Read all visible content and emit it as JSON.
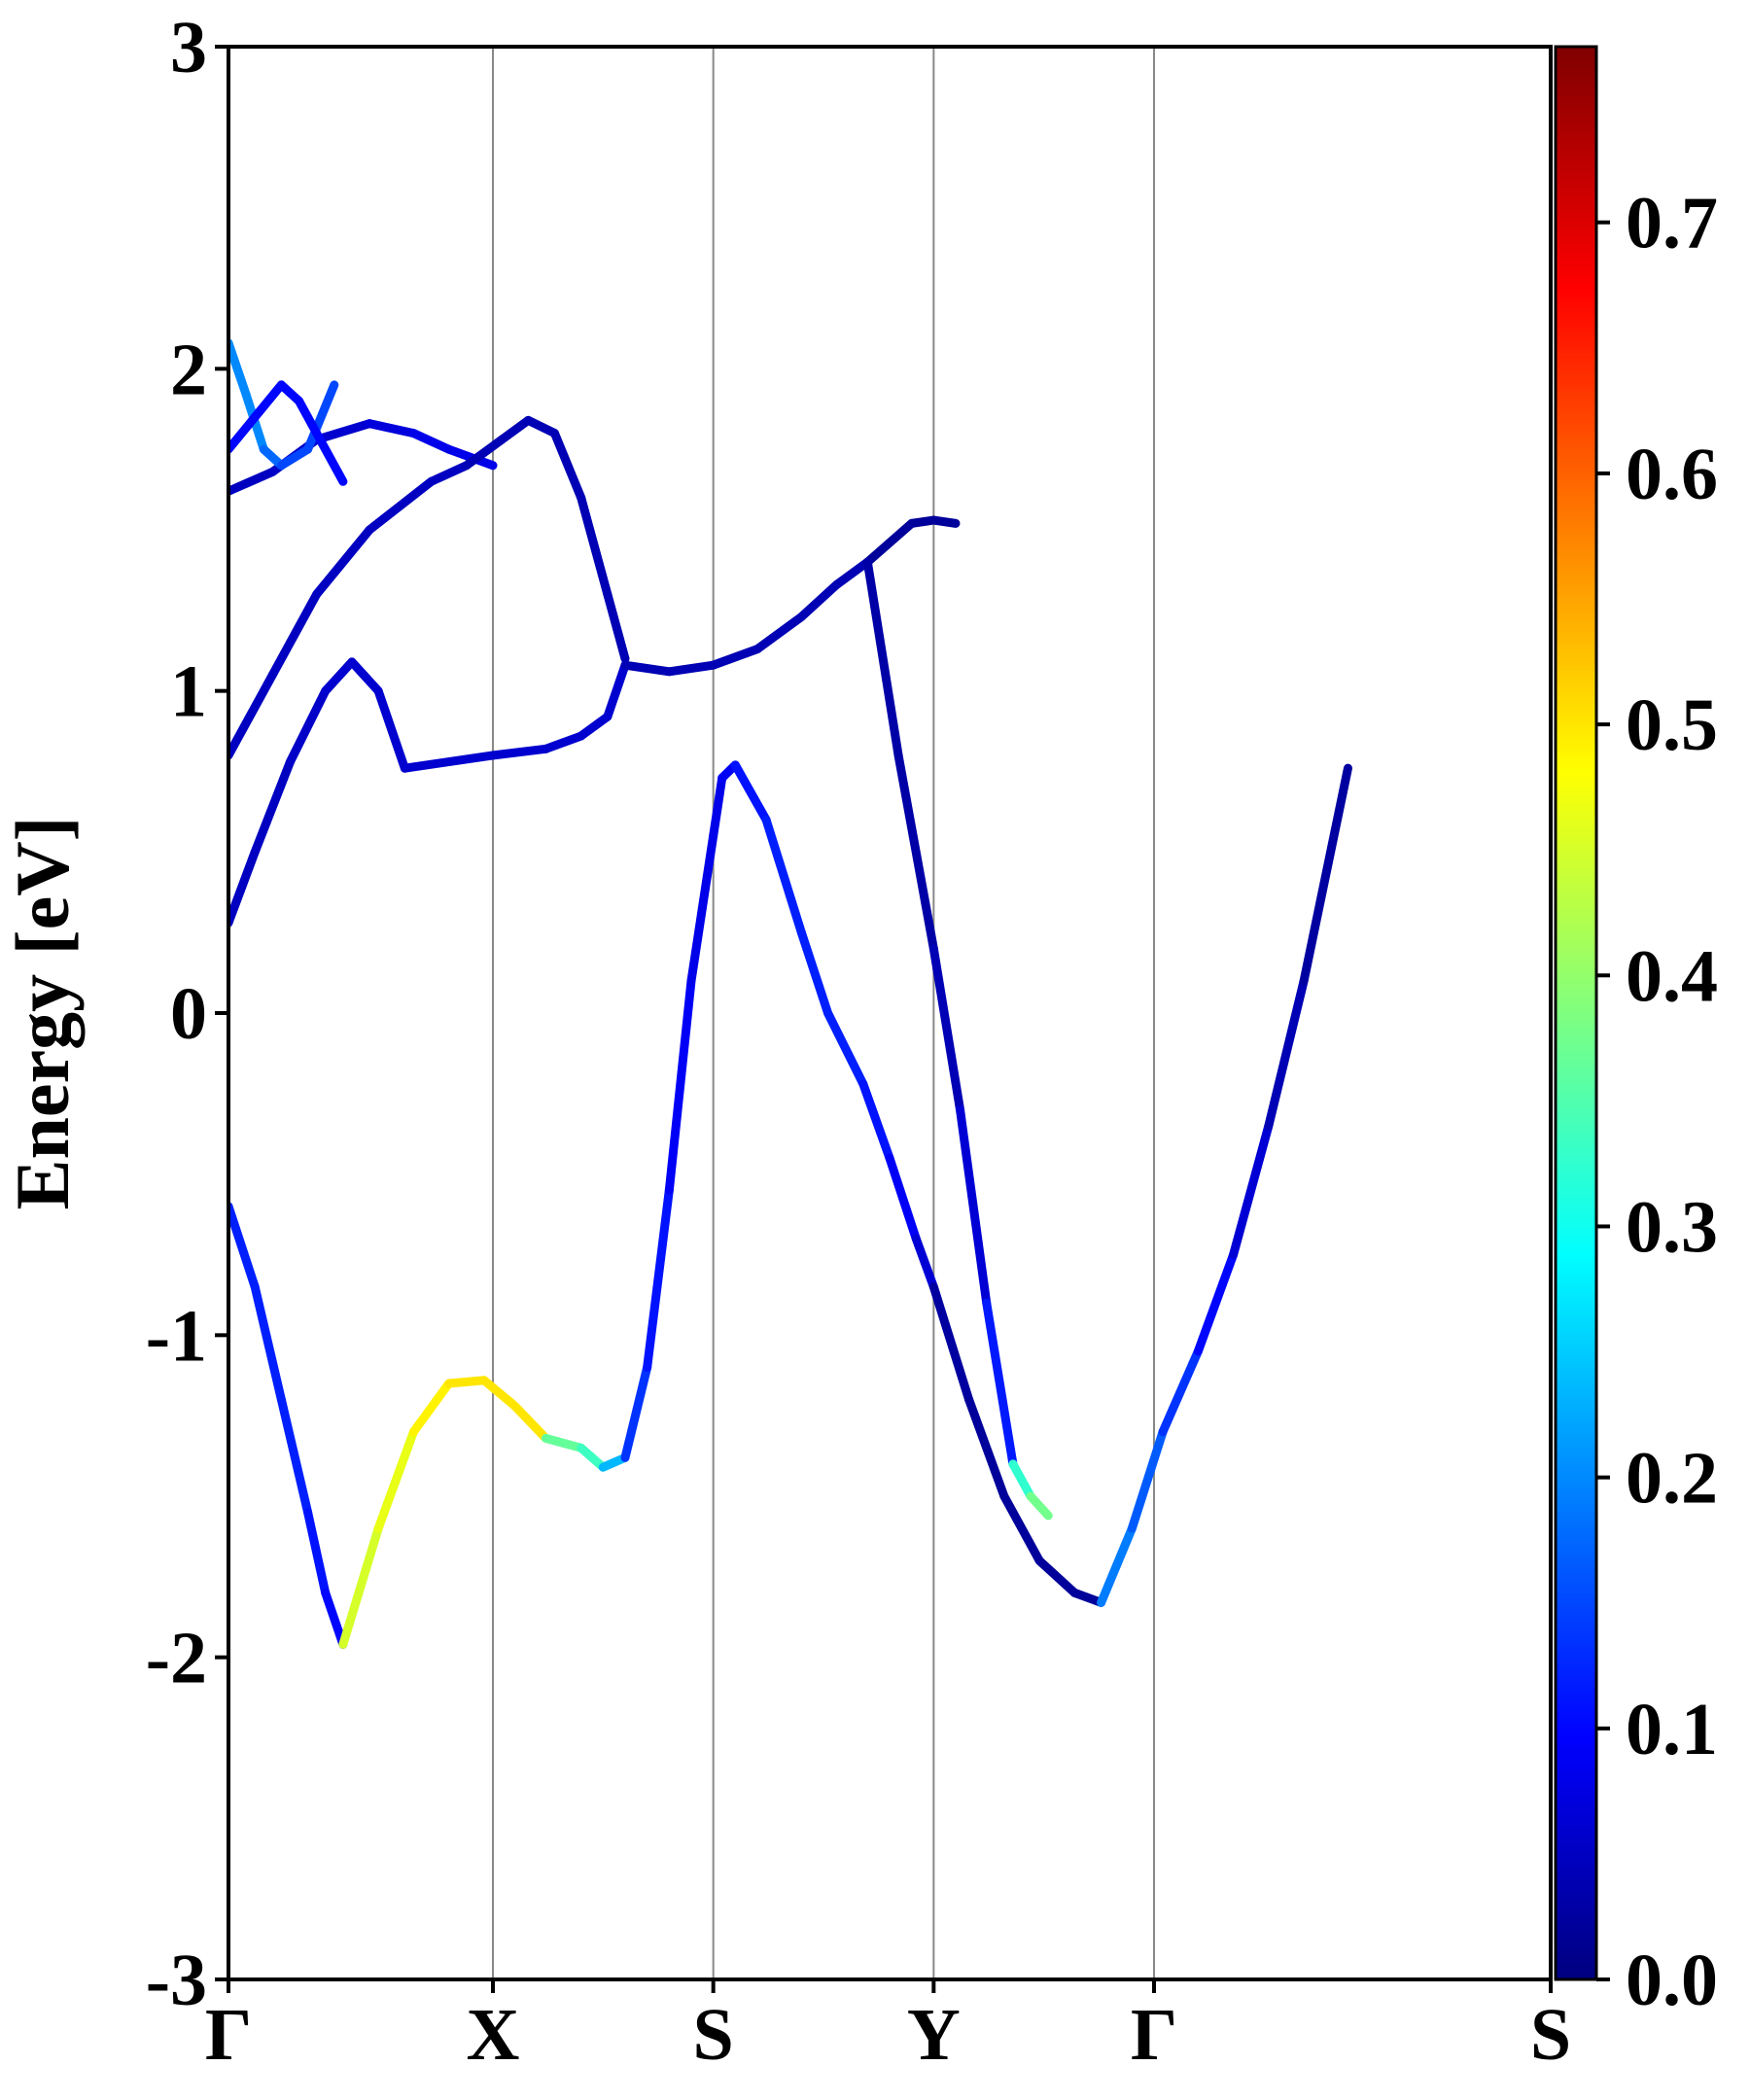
{
  "chart_data": {
    "type": "line",
    "title": "",
    "ylabel": "Energy [eV]",
    "xlabel": "",
    "ylim": [
      -3,
      3
    ],
    "x_ticks": [
      "Γ",
      "X",
      "S",
      "Y",
      "Γ",
      "S"
    ],
    "y_ticks": [
      "3",
      "2",
      "1",
      "0",
      "-1",
      "-2",
      "-3"
    ],
    "colorbar": {
      "range": [
        0.0,
        0.77
      ],
      "ticks": [
        "0.0",
        "0.1",
        "0.2",
        "0.3",
        "0.4",
        "0.5",
        "0.6",
        "0.7"
      ],
      "colormap": "jet"
    },
    "grid": "vertical lines at high-symmetry points",
    "series": [
      {
        "points": [
          [
            0,
            -0.6
          ],
          [
            0.06,
            -0.85
          ],
          [
            0.12,
            -1.2
          ],
          [
            0.18,
            -1.55
          ],
          [
            0.22,
            -1.8
          ],
          [
            0.26,
            -1.96
          ]
        ],
        "c": [
          0.12,
          0.12,
          0.12,
          0.12,
          0.1,
          0.1
        ]
      },
      {
        "points": [
          [
            0.26,
            -1.96
          ],
          [
            0.34,
            -1.6
          ],
          [
            0.42,
            -1.3
          ],
          [
            0.5,
            -1.15
          ],
          [
            0.58,
            -1.14
          ],
          [
            0.65,
            -1.22
          ],
          [
            0.72,
            -1.32
          ]
        ],
        "c": [
          0.45,
          0.45,
          0.48,
          0.5,
          0.5,
          0.5,
          0.5
        ]
      },
      {
        "points": [
          [
            0.72,
            -1.32
          ],
          [
            0.8,
            -1.35
          ],
          [
            0.85,
            -1.41
          ],
          [
            0.9,
            -1.38
          ],
          [
            0.95,
            -1.1
          ],
          [
            1.0,
            -0.55
          ],
          [
            1.05,
            0.1
          ],
          [
            1.1,
            0.55
          ],
          [
            1.12,
            0.73
          ],
          [
            1.15,
            0.77
          ]
        ],
        "c": [
          0.38,
          0.35,
          0.32,
          0.15,
          0.12,
          0.1,
          0.08,
          0.08,
          0.08,
          0.1
        ]
      },
      {
        "points": [
          [
            1.15,
            0.77
          ],
          [
            1.22,
            0.6
          ],
          [
            1.3,
            0.25
          ],
          [
            1.36,
            0.0
          ],
          [
            1.44,
            -0.22
          ],
          [
            1.5,
            -0.45
          ],
          [
            1.56,
            -0.7
          ],
          [
            1.6,
            -0.85
          ]
        ],
        "c": [
          0.1,
          0.12,
          0.12,
          0.12,
          0.12,
          0.1,
          0.08,
          0.05
        ]
      },
      {
        "points": [
          [
            1.6,
            -0.85
          ],
          [
            1.68,
            -1.2
          ],
          [
            1.76,
            -1.5
          ],
          [
            1.84,
            -1.7
          ],
          [
            1.92,
            -1.8
          ],
          [
            1.98,
            -1.83
          ]
        ],
        "c": [
          0.03,
          0.02,
          0.02,
          0.02,
          0.02,
          0.02
        ]
      },
      {
        "points": [
          [
            1.98,
            -1.83
          ],
          [
            2.05,
            -1.6
          ],
          [
            2.12,
            -1.3
          ],
          [
            2.2,
            -1.05
          ],
          [
            2.28,
            -0.75
          ],
          [
            2.36,
            -0.35
          ],
          [
            2.44,
            0.1
          ],
          [
            2.54,
            0.76
          ]
        ],
        "c": [
          0.2,
          0.18,
          0.15,
          0.12,
          0.08,
          0.05,
          0.03,
          0.02
        ]
      },
      {
        "points": [
          [
            0,
            0.28
          ],
          [
            0.06,
            0.5
          ],
          [
            0.14,
            0.78
          ],
          [
            0.22,
            1.0
          ],
          [
            0.28,
            1.09
          ],
          [
            0.34,
            1.0
          ],
          [
            0.4,
            0.76
          ]
        ],
        "c": [
          0.05,
          0.05,
          0.05,
          0.06,
          0.06,
          0.06,
          0.06
        ]
      },
      {
        "points": [
          [
            0.4,
            0.76
          ],
          [
            0.6,
            0.8
          ],
          [
            0.72,
            0.82
          ],
          [
            0.8,
            0.86
          ],
          [
            0.86,
            0.92
          ],
          [
            0.9,
            1.08
          ]
        ],
        "c": [
          0.06,
          0.06,
          0.06,
          0.06,
          0.06,
          0.06
        ]
      },
      {
        "points": [
          [
            0.9,
            1.08
          ],
          [
            1.0,
            1.06
          ],
          [
            1.1,
            1.08
          ],
          [
            1.2,
            1.13
          ],
          [
            1.3,
            1.23
          ],
          [
            1.38,
            1.33
          ],
          [
            1.45,
            1.4
          ]
        ],
        "c": [
          0.04,
          0.04,
          0.04,
          0.04,
          0.04,
          0.04,
          0.04
        ]
      },
      {
        "points": [
          [
            1.45,
            1.4
          ],
          [
            1.55,
            1.52
          ],
          [
            1.6,
            1.53
          ],
          [
            1.65,
            1.52
          ]
        ],
        "c": [
          0.02,
          0.02,
          0.02,
          0.02
        ]
      },
      {
        "points": [
          [
            1.45,
            1.4
          ],
          [
            1.52,
            0.8
          ],
          [
            1.6,
            0.2
          ],
          [
            1.66,
            -0.3
          ],
          [
            1.72,
            -0.9
          ],
          [
            1.78,
            -1.4
          ]
        ],
        "c": [
          0.03,
          0.03,
          0.03,
          0.05,
          0.08,
          0.15
        ]
      },
      {
        "points": [
          [
            1.78,
            -1.4
          ],
          [
            1.82,
            -1.5
          ],
          [
            1.86,
            -1.56
          ]
        ],
        "c": [
          0.3,
          0.35,
          0.4
        ]
      },
      {
        "points": [
          [
            0,
            1.62
          ],
          [
            0.1,
            1.68
          ],
          [
            0.2,
            1.78
          ],
          [
            0.32,
            1.83
          ],
          [
            0.42,
            1.8
          ],
          [
            0.5,
            1.75
          ],
          [
            0.6,
            1.7
          ]
        ],
        "c": [
          0.05,
          0.05,
          0.06,
          0.06,
          0.08,
          0.08,
          0.08
        ]
      },
      {
        "points": [
          [
            0,
            0.8
          ],
          [
            0.1,
            1.05
          ],
          [
            0.2,
            1.3
          ],
          [
            0.32,
            1.5
          ],
          [
            0.46,
            1.65
          ],
          [
            0.54,
            1.7
          ]
        ],
        "c": [
          0.05,
          0.05,
          0.05,
          0.05,
          0.05,
          0.05
        ]
      },
      {
        "points": [
          [
            0.54,
            1.7
          ],
          [
            0.62,
            1.78
          ],
          [
            0.68,
            1.84
          ],
          [
            0.74,
            1.8
          ],
          [
            0.8,
            1.6
          ],
          [
            0.86,
            1.3
          ],
          [
            0.9,
            1.1
          ]
        ],
        "c": [
          0.04,
          0.04,
          0.04,
          0.04,
          0.04,
          0.04,
          0.04
        ]
      },
      {
        "points": [
          [
            0,
            2.08
          ],
          [
            0.04,
            1.92
          ],
          [
            0.08,
            1.75
          ],
          [
            0.12,
            1.7
          ],
          [
            0.18,
            1.75
          ],
          [
            0.24,
            1.95
          ]
        ],
        "c": [
          0.2,
          0.2,
          0.2,
          0.15,
          0.15,
          0.15
        ]
      },
      {
        "points": [
          [
            0,
            1.75
          ],
          [
            0.06,
            1.85
          ],
          [
            0.12,
            1.95
          ],
          [
            0.16,
            1.9
          ],
          [
            0.2,
            1.8
          ],
          [
            0.26,
            1.65
          ]
        ],
        "c": [
          0.1,
          0.1,
          0.1,
          0.1,
          0.1,
          0.1
        ]
      }
    ]
  }
}
